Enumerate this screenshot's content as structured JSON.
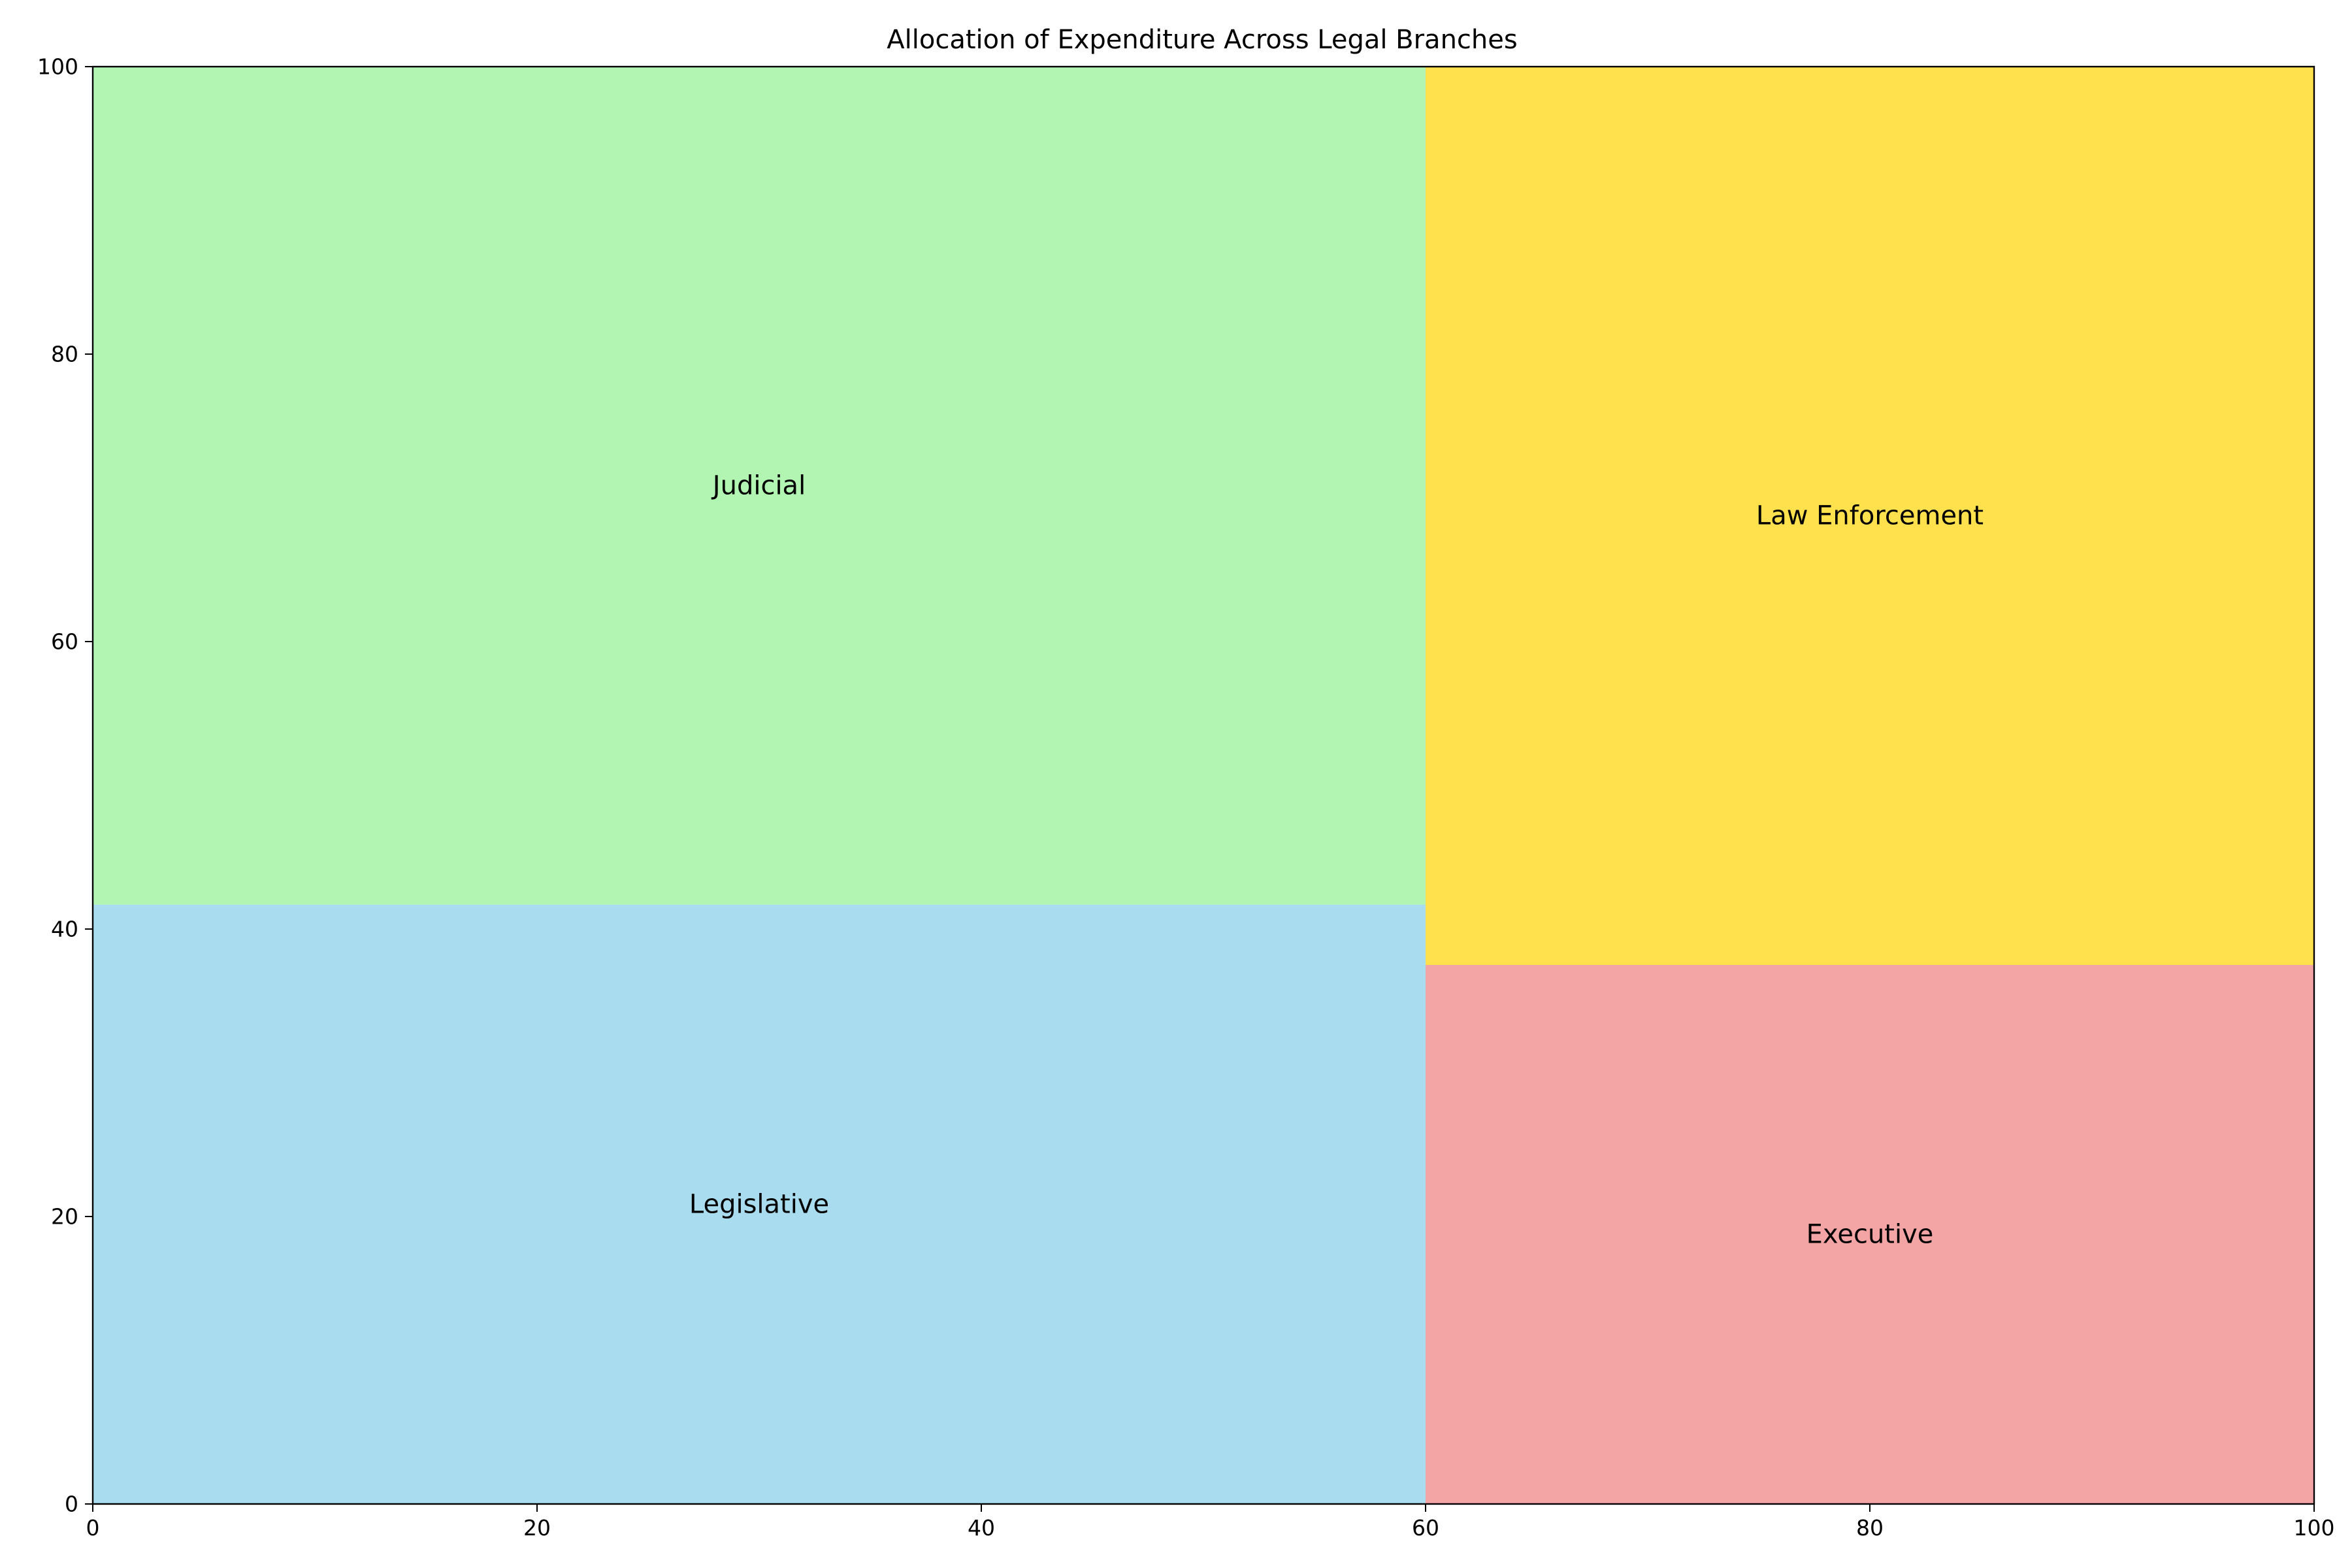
{
  "chart_data": {
    "type": "treemap",
    "title": "Allocation of Expenditure Across Legal Branches",
    "xlabel": "",
    "ylabel": "",
    "xlim": [
      0,
      100
    ],
    "ylim": [
      0,
      100
    ],
    "x_ticks": [
      0,
      20,
      40,
      60,
      80,
      100
    ],
    "y_ticks": [
      0,
      20,
      40,
      60,
      80,
      100
    ],
    "grid": false,
    "legend": "none",
    "rects": [
      {
        "label": "Legislative",
        "x": 0,
        "y": 0,
        "w": 60,
        "h": 41.7,
        "color": "#a9dcee"
      },
      {
        "label": "Judicial",
        "x": 0,
        "y": 41.7,
        "w": 60,
        "h": 58.3,
        "color": "#b2f4b1"
      },
      {
        "label": "Executive",
        "x": 60,
        "y": 0,
        "w": 40,
        "h": 37.5,
        "color": "#f3a5a5"
      },
      {
        "label": "Law Enforcement",
        "x": 60,
        "y": 37.5,
        "w": 40,
        "h": 62.5,
        "color": "#ffe14d"
      }
    ]
  }
}
